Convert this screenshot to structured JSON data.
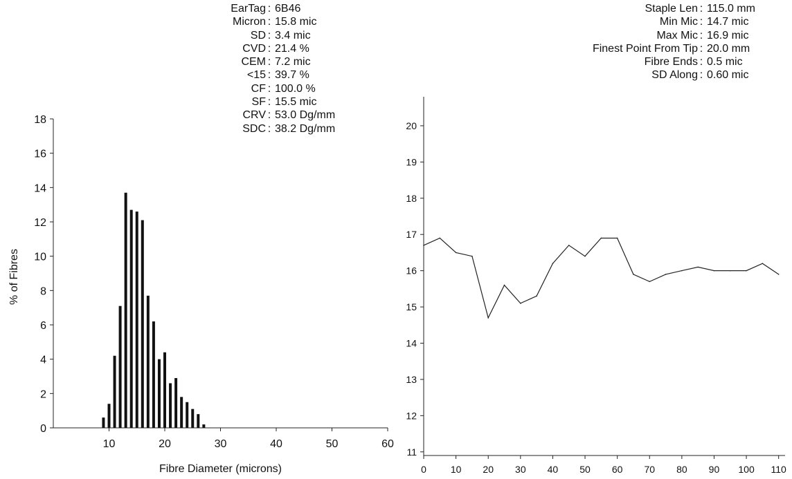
{
  "stats_left": [
    {
      "label": "EarTag",
      "value": "6B46"
    },
    {
      "label": "Micron",
      "value": "15.8 mic"
    },
    {
      "label": "SD",
      "value": "3.4 mic"
    },
    {
      "label": "CVD",
      "value": "21.4 %"
    },
    {
      "label": "CEM",
      "value": "7.2 mic"
    },
    {
      "label": "<15",
      "value": "39.7 %"
    },
    {
      "label": "CF",
      "value": "100.0 %"
    },
    {
      "label": "SF",
      "value": "15.5 mic"
    },
    {
      "label": "CRV",
      "value": "53.0 Dg/mm"
    },
    {
      "label": "SDC",
      "value": "38.2 Dg/mm"
    }
  ],
  "stats_right": [
    {
      "label": "Staple Len",
      "value": "115.0 mm"
    },
    {
      "label": "Min Mic",
      "value": "14.7 mic"
    },
    {
      "label": "Max Mic",
      "value": "16.9 mic"
    },
    {
      "label": "Finest Point From Tip",
      "value": "20.0 mm"
    },
    {
      "label": "Fibre Ends",
      "value": "0.5 mic"
    },
    {
      "label": "SD Along",
      "value": "0.60 mic"
    }
  ],
  "chart_data": [
    {
      "type": "bar",
      "title": "",
      "xlabel": "Fibre Diameter (microns)",
      "ylabel": "% of Fibres",
      "xlim": [
        0,
        60
      ],
      "ylim": [
        0,
        18
      ],
      "x_ticks": [
        10,
        20,
        30,
        40,
        50,
        60
      ],
      "y_ticks": [
        0,
        2,
        4,
        6,
        8,
        10,
        12,
        14,
        16,
        18
      ],
      "grid": false,
      "x": [
        9,
        10,
        11,
        12,
        13,
        14,
        15,
        16,
        17,
        18,
        19,
        20,
        21,
        22,
        23,
        24,
        25,
        26,
        27
      ],
      "values": [
        0.6,
        1.4,
        4.2,
        7.1,
        13.7,
        12.7,
        12.6,
        12.1,
        7.7,
        6.2,
        4.0,
        4.4,
        2.6,
        2.9,
        1.8,
        1.5,
        1.1,
        0.8,
        0.2
      ]
    },
    {
      "type": "line",
      "title": "",
      "xlabel": "",
      "ylabel": "",
      "xlim": [
        0,
        112
      ],
      "ylim": [
        10.9,
        20.8
      ],
      "x_ticks": [
        0,
        10,
        20,
        30,
        40,
        50,
        60,
        70,
        80,
        90,
        100,
        110
      ],
      "y_ticks": [
        11,
        12,
        13,
        14,
        15,
        16,
        17,
        18,
        19,
        20
      ],
      "grid": false,
      "x": [
        0,
        5,
        10,
        15,
        20,
        25,
        30,
        35,
        40,
        45,
        50,
        55,
        60,
        65,
        70,
        75,
        80,
        85,
        90,
        95,
        100,
        105,
        110
      ],
      "values": [
        16.7,
        16.9,
        16.5,
        16.4,
        14.7,
        15.6,
        15.1,
        15.3,
        16.2,
        16.7,
        16.4,
        16.9,
        16.9,
        15.9,
        15.7,
        15.9,
        16.0,
        16.1,
        16.0,
        16.0,
        16.0,
        16.2,
        15.9
      ]
    }
  ]
}
